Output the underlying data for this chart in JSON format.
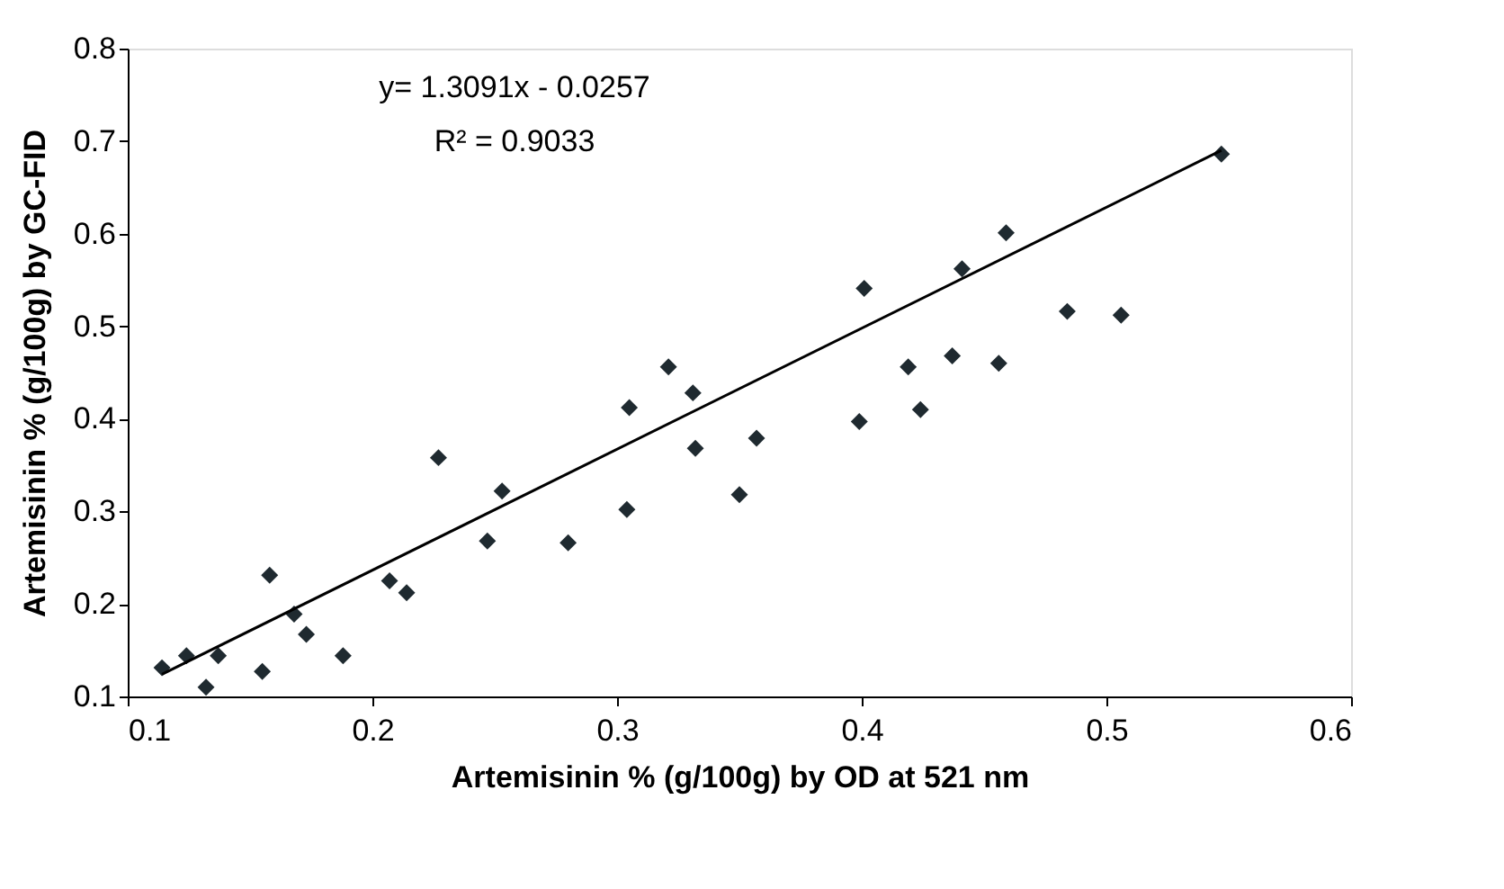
{
  "chart_data": {
    "type": "scatter",
    "xlabel": "Artemisinin % (g/100g) by OD at 521 nm",
    "ylabel": "Artemisinin % (g/100g) by GC-FID",
    "annotations": [
      "y= 1.3091x - 0.0257",
      "R² = 0.9033"
    ],
    "xlim": [
      0.1,
      0.6
    ],
    "xticks": [
      0.1,
      0.2,
      0.3,
      0.4,
      0.5,
      0.6
    ],
    "ylim": [
      0.1,
      0.8
    ],
    "yticks": [
      0.1,
      0.2,
      0.3,
      0.4,
      0.5,
      0.6,
      0.7,
      0.8
    ],
    "grid": false,
    "series": [
      {
        "marker": "diamond",
        "color": "#1f2a30",
        "x": [
          0.114,
          0.124,
          0.132,
          0.137,
          0.155,
          0.158,
          0.168,
          0.173,
          0.188,
          0.207,
          0.214,
          0.227,
          0.247,
          0.253,
          0.28,
          0.304,
          0.305,
          0.321,
          0.331,
          0.332,
          0.35,
          0.357,
          0.399,
          0.401,
          0.419,
          0.424,
          0.437,
          0.441,
          0.456,
          0.459,
          0.484,
          0.506,
          0.547
        ],
        "values": [
          0.131,
          0.144,
          0.11,
          0.144,
          0.127,
          0.231,
          0.189,
          0.167,
          0.144,
          0.225,
          0.212,
          0.358,
          0.268,
          0.322,
          0.266,
          0.302,
          0.412,
          0.456,
          0.428,
          0.368,
          0.318,
          0.379,
          0.397,
          0.541,
          0.456,
          0.41,
          0.468,
          0.562,
          0.46,
          0.601,
          0.516,
          0.512,
          0.686
        ]
      },
      {
        "type": "line",
        "marker": "none",
        "color": "#000000",
        "x": [
          0.114,
          0.547
        ],
        "values": [
          0.124,
          0.69
        ]
      }
    ]
  }
}
